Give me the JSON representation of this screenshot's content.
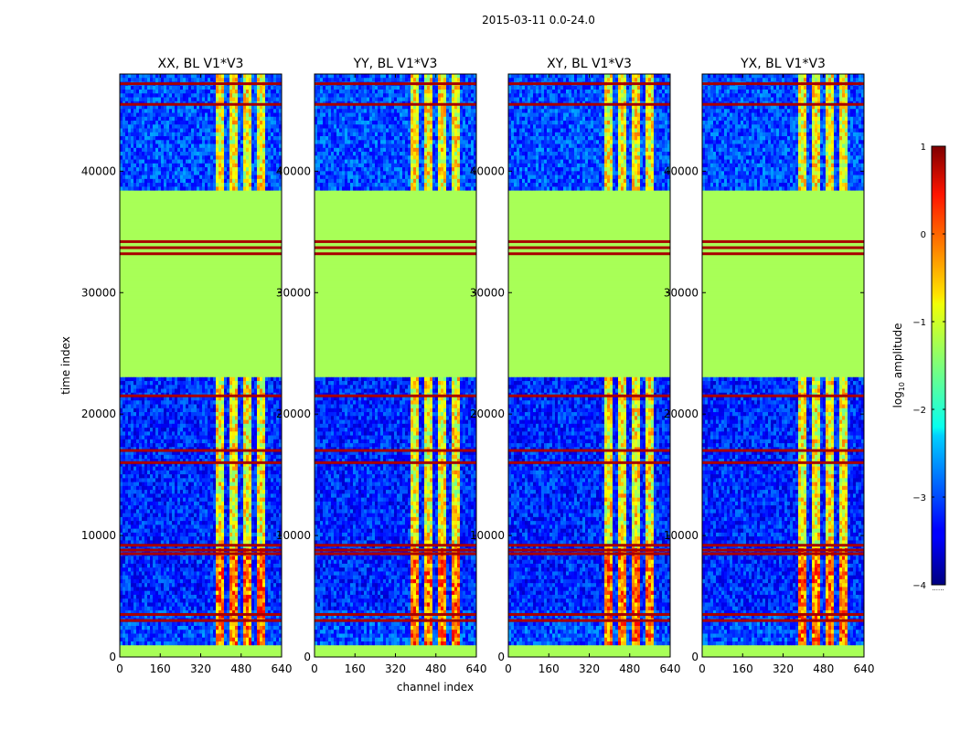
{
  "chart_data": {
    "type": "heatmap",
    "title": "2015-03-11 0.0-24.0",
    "xlabel": "channel index",
    "ylabel": "time index",
    "xlim": [
      0,
      640
    ],
    "ylim": [
      0,
      48000
    ],
    "xticks": [
      0,
      160,
      320,
      480,
      640
    ],
    "yticks": [
      0,
      10000,
      20000,
      30000,
      40000
    ],
    "panels": [
      {
        "title": "XX, BL V1*V3"
      },
      {
        "title": "YY, BL V1*V3"
      },
      {
        "title": "XY, BL V1*V3"
      },
      {
        "title": "YX, BL V1*V3"
      }
    ],
    "colorbar": {
      "label_prefix": "log",
      "label_sub": "10",
      "label_suffix": " amplitude",
      "range": [
        -4,
        1
      ],
      "ticks": [
        -4,
        -3,
        -2,
        -1,
        0,
        1
      ],
      "colormap": "jet",
      "dots": "......"
    },
    "time_blocks": [
      {
        "t0": 0,
        "t1": 1000,
        "level": -1.3
      },
      {
        "t0": 1000,
        "t1": 4000,
        "level": -3.0
      },
      {
        "t0": 4000,
        "t1": 23000,
        "level": -3.2
      },
      {
        "t0": 23000,
        "t1": 38500,
        "level": -1.3
      },
      {
        "t0": 38500,
        "t1": 39300,
        "level": -3.0
      },
      {
        "t0": 39300,
        "t1": 48000,
        "level": -3.0
      }
    ],
    "hot_lines": [
      3000,
      3500,
      8500,
      8800,
      9200,
      16000,
      17000,
      21500,
      33200,
      33700,
      34200,
      45500,
      47200
    ],
    "signal_band": {
      "c0": 385,
      "c1": 600,
      "level": -1.6
    }
  }
}
